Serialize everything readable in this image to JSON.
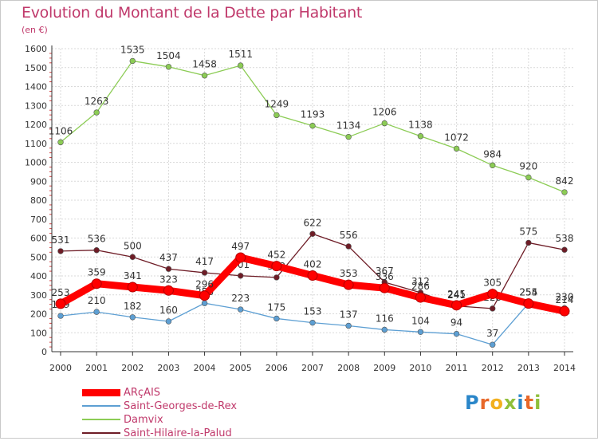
{
  "title": "Evolution du Montant de la Dette par Habitant",
  "subtitle": "(en €)",
  "logo": [
    "P",
    "r",
    "o",
    "x",
    "i",
    "t",
    "i"
  ],
  "chart_data": {
    "type": "line",
    "x": [
      2000,
      2001,
      2002,
      2003,
      2004,
      2005,
      2006,
      2007,
      2008,
      2009,
      2010,
      2011,
      2012,
      2013,
      2014
    ],
    "ylim": [
      0,
      1600
    ],
    "yticks": [
      0,
      100,
      200,
      300,
      400,
      500,
      600,
      700,
      800,
      900,
      1000,
      1100,
      1200,
      1300,
      1400,
      1500,
      1600
    ],
    "grid": true,
    "series": [
      {
        "name": "Saint-Hilaire-la-Palud",
        "color": "#6e1c26",
        "labels_visible": true,
        "values": [
          531,
          536,
          500,
          437,
          417,
          401,
          392,
          622,
          556,
          367,
          312,
          241,
          228,
          575,
          538
        ]
      },
      {
        "name": "Damvix",
        "color": "#8ccc55",
        "labels_visible": true,
        "values": [
          1106,
          1263,
          1535,
          1504,
          1458,
          1511,
          1249,
          1193,
          1134,
          1206,
          1138,
          1072,
          984,
          920,
          842
        ]
      },
      {
        "name": "Saint-Georges-de-Rex",
        "color": "#5d9fd3",
        "labels_visible": true,
        "values": [
          189,
          210,
          182,
          160,
          256,
          223,
          175,
          153,
          137,
          116,
          104,
          94,
          37,
          255,
          230
        ]
      },
      {
        "name": "ARçAIS",
        "color": "#ff0000",
        "labels_visible": true,
        "values": [
          253,
          359,
          341,
          323,
          296,
          497,
          452,
          402,
          353,
          336,
          286,
          245,
          305,
          254,
          214
        ]
      }
    ],
    "legend": [
      "ARçAIS",
      "Saint-Georges-de-Rex",
      "Damvix",
      "Saint-Hilaire-la-Palud"
    ],
    "legend_position": "bottom-left"
  }
}
